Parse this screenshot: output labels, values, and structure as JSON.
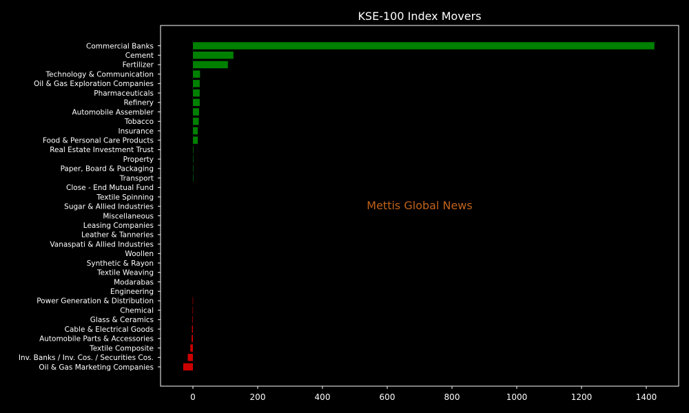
{
  "chart_data": {
    "type": "bar",
    "orientation": "horizontal",
    "title": "KSE-100 Index Movers",
    "watermark": "Mettis Global News",
    "xlim": [
      -100,
      1500
    ],
    "xticks": [
      0,
      200,
      400,
      600,
      800,
      1000,
      1200,
      1400
    ],
    "grid": false,
    "colors": {
      "positive": "#008000",
      "negative": "#cc0000",
      "background": "#000000",
      "text": "#ffffff",
      "watermark": "#c0621b"
    },
    "categories": [
      "Commercial Banks",
      "Cement",
      "Fertilizer",
      "Technology & Communication",
      "Oil & Gas Exploration Companies",
      "Pharmaceuticals",
      "Refinery",
      "Automobile Assembler",
      "Tobacco",
      "Insurance",
      "Food & Personal Care Products",
      "Real Estate Investment Trust",
      "Property",
      "Paper, Board & Packaging",
      "Transport",
      "Close - End Mutual Fund",
      "Textile Spinning",
      "Sugar & Allied Industries",
      "Miscellaneous",
      "Leasing Companies",
      "Leather & Tanneries",
      "Vanaspati & Allied Industries",
      "Woollen",
      "Synthetic & Rayon",
      "Textile Weaving",
      "Modarabas",
      "Engineering",
      "Power Generation & Distribution",
      "Chemical",
      "Glass & Ceramics",
      "Cable & Electrical Goods",
      "Automobile Parts & Accessories",
      "Textile Composite",
      "Inv. Banks / Inv. Cos. / Securities Cos.",
      "Oil & Gas Marketing Companies"
    ],
    "values": [
      1425,
      125,
      108,
      22,
      21,
      21,
      21,
      19,
      18,
      15,
      15,
      1.5,
      1.2,
      1.0,
      0.8,
      0,
      0,
      0,
      0,
      0,
      0,
      0,
      0,
      0,
      0,
      0,
      0,
      -0.8,
      -1.0,
      -1.5,
      -3,
      -4,
      -8,
      -16,
      -30
    ]
  }
}
